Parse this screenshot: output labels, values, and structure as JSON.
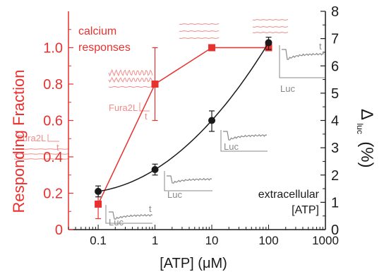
{
  "colors": {
    "red": "#e8312f",
    "black": "#1a1a1a",
    "inset_red": "#f08d8b",
    "inset_gray": "#8a8a8a"
  },
  "chart_data": {
    "type": "line",
    "title": "",
    "x_scale": "log",
    "xlabel": "[ATP] (μM)",
    "xlim": [
      0.03,
      1000
    ],
    "x_ticks": [
      0.1,
      1,
      10,
      100,
      1000
    ],
    "x_tick_labels": [
      "0.1",
      "1",
      "10",
      "100",
      "1000"
    ],
    "y_left": {
      "label": "Responding Fraction",
      "lim": [
        0,
        1.2
      ],
      "ticks": [
        0,
        0.2,
        0.4,
        0.6,
        0.8,
        1.0
      ],
      "tick_labels": [
        "0",
        "0.2",
        "0.4",
        "0.6",
        "0.8",
        "1.0"
      ]
    },
    "y_right": {
      "label_main": "Δ",
      "label_sub": "luc",
      "label_unit": "(%)",
      "lim": [
        0,
        8
      ],
      "ticks": [
        0,
        1,
        2,
        3,
        4,
        5,
        6,
        7,
        8
      ],
      "tick_labels": [
        "0",
        "1",
        "2",
        "3",
        "4",
        "5",
        "6",
        "7",
        "8"
      ]
    },
    "grid": false,
    "series": [
      {
        "axis": "left",
        "color": "#e8312f",
        "marker": "square",
        "x": [
          0.1,
          1,
          10,
          100
        ],
        "y": [
          0.14,
          0.8,
          1.0,
          1.0
        ],
        "err_low": [
          0.06,
          0.6,
          1.0,
          1.0
        ],
        "err_high": [
          0.22,
          1.0,
          1.0,
          1.0
        ]
      },
      {
        "axis": "right",
        "color": "#1a1a1a",
        "marker": "circle",
        "x": [
          0.1,
          1,
          10,
          100
        ],
        "y": [
          1.4,
          2.2,
          4.0,
          6.85
        ],
        "err_low": [
          1.2,
          2.0,
          3.6,
          6.6
        ],
        "err_high": [
          1.6,
          2.4,
          4.35,
          7.05
        ]
      }
    ],
    "annotations": {
      "calcium_line1": "calcium",
      "calcium_line2": "responses",
      "extracellular_line1": "extracellular",
      "extracellular_line2": "[ATP]",
      "fura_label": "Fura2L",
      "fura_t": "t",
      "luc_label": "Luc",
      "luc_t": "t"
    }
  }
}
